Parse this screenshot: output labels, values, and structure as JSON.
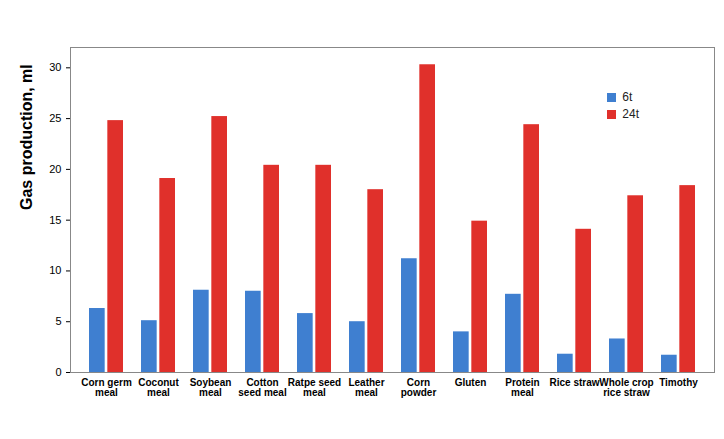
{
  "chart_data": {
    "type": "bar",
    "categories": [
      "Corn germ meal",
      "Coconut meal",
      "Soybean meal",
      "Cotton seed meal",
      "Ratpe seed meal",
      "Leather meal",
      "Corn powder",
      "Gluten",
      "Protein meal",
      "Rice straw",
      "Whole crop rice straw",
      "Timothy"
    ],
    "series": [
      {
        "name": "6t",
        "color": "#3f7fd0",
        "values": [
          6.3,
          5.1,
          8.1,
          8.0,
          5.8,
          5.0,
          11.2,
          4.0,
          7.7,
          1.8,
          3.3,
          1.7
        ]
      },
      {
        "name": "24t",
        "color": "#e0302b",
        "values": [
          24.8,
          19.1,
          25.2,
          20.4,
          20.4,
          18.0,
          30.3,
          14.9,
          24.4,
          14.1,
          17.4,
          18.4
        ]
      }
    ],
    "y_label": "Gas production, ml",
    "ylim": [
      0,
      32
    ],
    "yticks": [
      0,
      5,
      10,
      15,
      20,
      25,
      30
    ],
    "grid": false,
    "legend": "top-right"
  }
}
